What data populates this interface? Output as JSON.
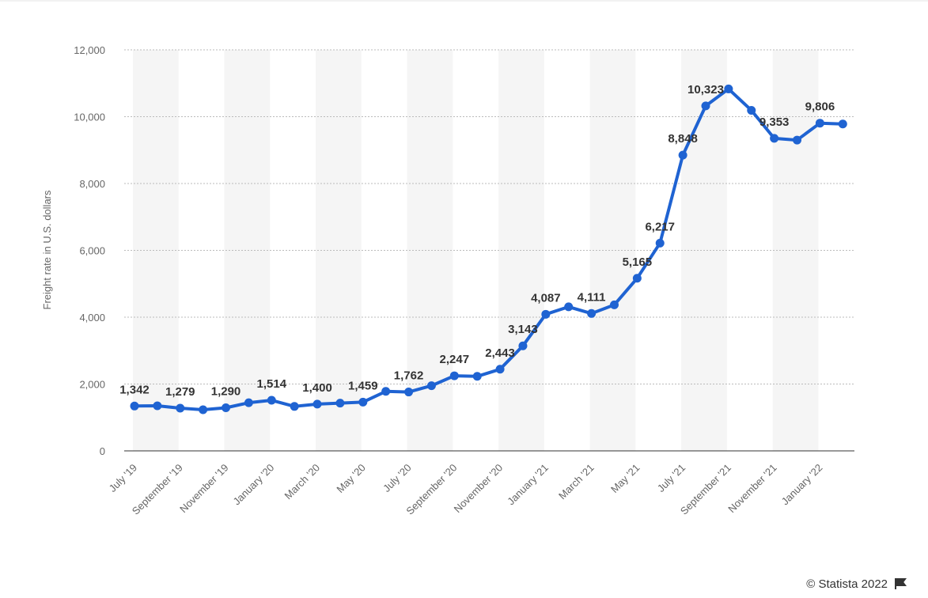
{
  "chart_data": {
    "type": "line",
    "y_label": "Freight rate in U.S. dollars",
    "source": "© Statista 2022",
    "categories": [
      "July '19",
      null,
      "September '19",
      null,
      "November '19",
      null,
      "January '20",
      null,
      "March '20",
      null,
      "May '20",
      null,
      "July '20",
      null,
      "September '20",
      null,
      "November '20",
      null,
      "January '21",
      null,
      "March '21",
      null,
      "May '21",
      null,
      "July '21",
      null,
      "September '21",
      null,
      "November '21",
      null,
      "January '22",
      null
    ],
    "series": [
      {
        "name": "Freight rate",
        "color": "#1f63d2",
        "values": [
          1342,
          1350,
          1279,
          1230,
          1290,
          1440,
          1514,
          1330,
          1400,
          1430,
          1459,
          1780,
          1762,
          1950,
          2247,
          2230,
          2443,
          3143,
          4087,
          4310,
          4111,
          4370,
          5165,
          6217,
          8848,
          10323,
          10830,
          10190,
          9353,
          9300,
          9806,
          9780
        ],
        "value_labels": [
          "1,342",
          null,
          "1,279",
          null,
          "1,290",
          null,
          "1,514",
          null,
          "1,400",
          null,
          "1,459",
          null,
          "1,762",
          null,
          "2,247",
          null,
          "2,443",
          "3,143",
          "4,087",
          null,
          "4,111",
          null,
          "5,165",
          "6,217",
          "8,848",
          "10,323",
          null,
          null,
          "9,353",
          null,
          "9,806",
          null
        ]
      }
    ],
    "ylim": [
      0,
      12000
    ],
    "yticks": [
      0,
      {
        "value": 2000,
        "label": "2,000"
      },
      {
        "value": 4000,
        "label": "4,000"
      },
      {
        "value": 6000,
        "label": "6,000"
      },
      {
        "value": 8000,
        "label": "8,000"
      },
      {
        "value": 10000,
        "label": "10,000"
      },
      {
        "value": 12000,
        "label": "12,000"
      }
    ],
    "grid": true
  }
}
